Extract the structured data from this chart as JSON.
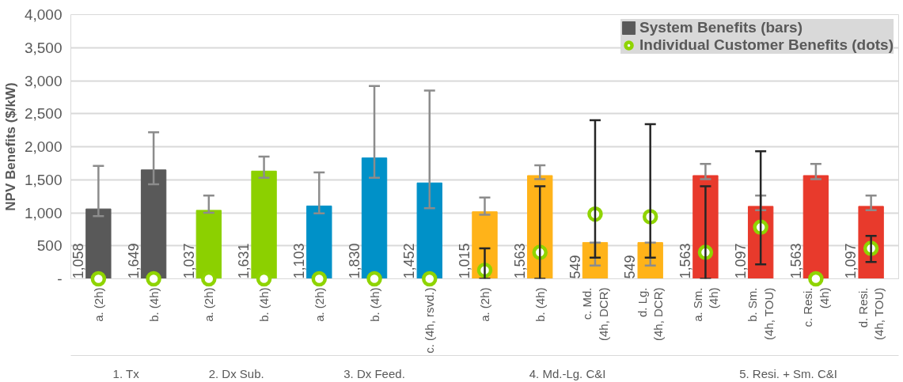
{
  "chart_data": {
    "type": "bar",
    "ylabel": "NPV Benefits ($/kW)",
    "categories": [
      "a. (2h)",
      "b. (4h)",
      "a. (2h)",
      "b. (4h)",
      "a. (2h)",
      "b. (4h)",
      "c. (4h, rsvd.)",
      "a. (2h)",
      "b. (4h)",
      "c. Md.\n(4h, DCR)",
      "d. Lg.\n(4h, DCR)",
      "a. Sm.\n(4h)",
      "b. Sm.\n(4h, TOU)",
      "c. Resi.\n(4h)",
      "d. Resi.\n(4h, TOU)"
    ],
    "annotations": [
      "1. Tx",
      "2. Dx Sub.",
      "3. Dx Feed.",
      "4. Md.-Lg. C&I",
      "5. Resi. + Sm. C&I"
    ],
    "ylim": [
      0,
      4000
    ],
    "yticks": [
      {
        "value": 0,
        "label": "-"
      },
      500,
      {
        "value": 1000,
        "label": "1,000"
      },
      {
        "value": 1500,
        "label": "1,500"
      },
      {
        "value": 2000,
        "label": "2,000"
      },
      {
        "value": 2500,
        "label": "2,500"
      },
      {
        "value": 3000,
        "label": "3,000"
      },
      {
        "value": 3500,
        "label": "3,500"
      },
      {
        "value": 4000,
        "label": "4,000"
      }
    ],
    "grid": "y",
    "legend": "top right",
    "series": [
      {
        "name": "System Benefits (bars)",
        "color": "#595959",
        "colors": [
          "#595959",
          "#595959",
          "#8cd000",
          "#8cd000",
          "#0091c8",
          "#0091c8",
          "#0091c8",
          "#ffb319",
          "#ffb319",
          "#ffb319",
          "#ffb319",
          "#e83a2c",
          "#e83a2c",
          "#e83a2c",
          "#e83a2c"
        ],
        "values": [
          1058,
          1649,
          1037,
          1631,
          1103,
          1830,
          1452,
          1015,
          1563,
          549,
          549,
          1563,
          1097,
          1563,
          1097
        ],
        "value_labels": [
          "1,058",
          "1,649",
          "1,037",
          "1,631",
          "1,103",
          "1,830",
          "1,452",
          "1,015",
          "1,563",
          "549",
          "549",
          "1,563",
          "1,097",
          "1,563",
          "1,097"
        ],
        "errors": [
          [
            950,
            1710
          ],
          [
            1430,
            2220
          ],
          [
            1000,
            1260
          ],
          [
            1530,
            1850
          ],
          [
            990,
            1610
          ],
          [
            1530,
            2920
          ],
          [
            1070,
            2850
          ],
          [
            970,
            1230
          ],
          [
            1510,
            1720
          ],
          [
            200,
            549
          ],
          [
            200,
            549
          ],
          [
            1510,
            1740
          ],
          [
            1040,
            1260
          ],
          [
            1510,
            1740
          ],
          [
            1040,
            1260
          ]
        ]
      },
      {
        "name": "Individual Customer Benefits (dots)",
        "type": "scatter",
        "marker": "circle",
        "color": "#8fd400",
        "values": [
          0,
          0,
          0,
          0,
          0,
          0,
          0,
          130,
          400,
          980,
          940,
          400,
          780,
          0,
          460
        ],
        "errors": [
          null,
          null,
          null,
          null,
          null,
          null,
          null,
          [
            0,
            460
          ],
          [
            0,
            1400
          ],
          [
            320,
            2400
          ],
          [
            320,
            2340
          ],
          [
            0,
            1400
          ],
          [
            220,
            1930
          ],
          null,
          [
            255,
            650
          ]
        ]
      }
    ]
  }
}
